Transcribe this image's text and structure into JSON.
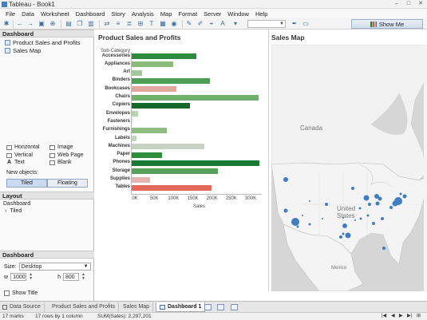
{
  "window": {
    "title": "Tableau - Book1"
  },
  "menu": [
    "File",
    "Data",
    "Worksheet",
    "Dashboard",
    "Story",
    "Analysis",
    "Map",
    "Format",
    "Server",
    "Window",
    "Help"
  ],
  "toolbar": {
    "show_me_label": "Show Me"
  },
  "dashboard_pane": {
    "header": "Dashboard",
    "sheets": [
      "Product Sales and Profits",
      "Sales Map"
    ],
    "objects": [
      "Horizontal",
      "Image",
      "Vertical",
      "Web Page",
      "Text",
      "Blank"
    ],
    "new_objects_label": "New objects:",
    "tiled_label": "Tiled",
    "floating_label": "Floating"
  },
  "layout_pane": {
    "header": "Layout",
    "tree_root": "Dashboard",
    "tree_child": "Tiled"
  },
  "size_pane": {
    "header": "Dashboard",
    "size_label": "Size:",
    "size_value": "Desktop",
    "w_label": "w",
    "w_value": "1000",
    "h_label": "h",
    "h_value": "800",
    "show_title_label": "Show Title"
  },
  "worksheets": {
    "left_title": "Product Sales and Profits",
    "right_title": "Sales Map"
  },
  "chart_data": {
    "type": "bar",
    "orientation": "horizontal",
    "row_header": "Sub-Category",
    "categories": [
      "Accessories",
      "Appliances",
      "Art",
      "Binders",
      "Bookcases",
      "Chairs",
      "Copiers",
      "Envelopes",
      "Fasteners",
      "Furnishings",
      "Labels",
      "Machines",
      "Paper",
      "Phones",
      "Storage",
      "Supplies",
      "Tables"
    ],
    "values": [
      167000,
      108000,
      27000,
      203000,
      115000,
      328000,
      150000,
      16000,
      3000,
      92000,
      12500,
      189000,
      78000,
      330000,
      224000,
      47000,
      207000
    ],
    "colors": [
      "#2e8b3e",
      "#8cbc7c",
      "#a3c99a",
      "#4e9e55",
      "#e0a79e",
      "#6fb06a",
      "#14692a",
      "#b7d3b0",
      "#dde8da",
      "#8dbd83",
      "#bdd9b6",
      "#c6d2c3",
      "#2e8e3c",
      "#1a7a33",
      "#58a15c",
      "#e5b4b1",
      "#e2685a"
    ],
    "xlabel": "Sales",
    "xticks": [
      "0K",
      "50K",
      "100K",
      "150K",
      "200K",
      "250K",
      "300K"
    ],
    "xlim": [
      0,
      335000
    ],
    "grid": false
  },
  "map": {
    "labels": {
      "canada": "Canada",
      "united_states": "United States",
      "mexico": "Mexico"
    },
    "points": [
      {
        "lon": -122.4,
        "lat": 37.8,
        "size": 5
      },
      {
        "lon": -118.2,
        "lat": 34.1,
        "size": 10
      },
      {
        "lon": -122.3,
        "lat": 47.6,
        "size": 6
      },
      {
        "lon": -117.2,
        "lat": 32.7,
        "size": 3
      },
      {
        "lon": -112.1,
        "lat": 33.4,
        "size": 3
      },
      {
        "lon": -104.9,
        "lat": 39.7,
        "size": 4
      },
      {
        "lon": -96.8,
        "lat": 32.8,
        "size": 6
      },
      {
        "lon": -95.4,
        "lat": 29.8,
        "size": 7
      },
      {
        "lon": -98.5,
        "lat": 29.4,
        "size": 4
      },
      {
        "lon": -97.7,
        "lat": 30.3,
        "size": 3
      },
      {
        "lon": -93.3,
        "lat": 45.0,
        "size": 4
      },
      {
        "lon": -90.2,
        "lat": 38.6,
        "size": 3
      },
      {
        "lon": -87.6,
        "lat": 41.9,
        "size": 7
      },
      {
        "lon": -83.0,
        "lat": 42.3,
        "size": 6
      },
      {
        "lon": -84.4,
        "lat": 33.8,
        "size": 4
      },
      {
        "lon": -86.2,
        "lat": 39.8,
        "size": 4
      },
      {
        "lon": -80.2,
        "lat": 25.8,
        "size": 4
      },
      {
        "lon": -81.7,
        "lat": 41.5,
        "size": 5
      },
      {
        "lon": -82.9,
        "lat": 40.0,
        "size": 5
      },
      {
        "lon": -80.8,
        "lat": 35.2,
        "size": 4
      },
      {
        "lon": -77.0,
        "lat": 38.9,
        "size": 4
      },
      {
        "lon": -75.2,
        "lat": 40.0,
        "size": 7
      },
      {
        "lon": -74.0,
        "lat": 40.7,
        "size": 10
      },
      {
        "lon": -71.1,
        "lat": 42.4,
        "size": 5
      },
      {
        "lon": -73.0,
        "lat": 43.0,
        "size": 3
      },
      {
        "lon": -86.8,
        "lat": 36.2,
        "size": 3
      },
      {
        "lon": -90.0,
        "lat": 35.1,
        "size": 3
      },
      {
        "lon": -97.5,
        "lat": 35.5,
        "size": 2
      },
      {
        "lon": -106.6,
        "lat": 35.1,
        "size": 2
      },
      {
        "lon": -111.9,
        "lat": 40.8,
        "size": 2
      },
      {
        "lon": -115.1,
        "lat": 36.2,
        "size": 2
      },
      {
        "lon": -92.3,
        "lat": 34.7,
        "size": 2
      }
    ]
  },
  "tabs": {
    "data_source": "Data Source",
    "sheet1": "Product Sales and Profits",
    "sheet2": "Sales Map",
    "dashboard1": "Dashboard 1"
  },
  "status": {
    "marks": "17 marks",
    "rows": "17 rows by 1 column",
    "sum": "SUM(Sales): 2,297,201"
  }
}
